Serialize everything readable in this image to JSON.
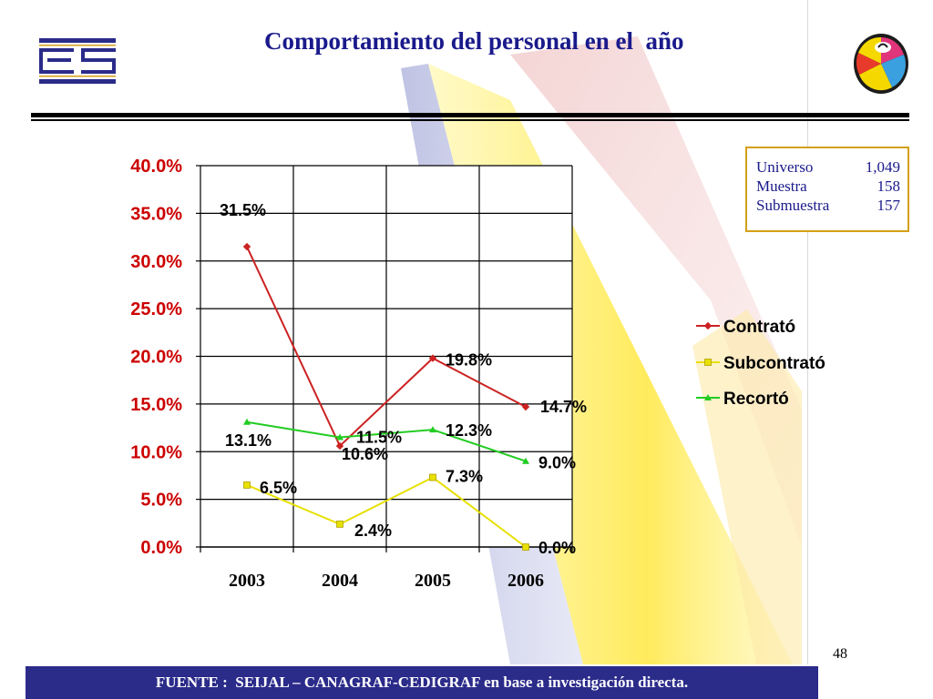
{
  "slide": {
    "title": "Comportamiento del personal en el  año",
    "page_number": "48",
    "footer": "FUENTE :  SEIJAL – CANAGRAF-CEDIGRAF en base a investigación directa."
  },
  "info_box": {
    "rows": [
      {
        "label": "Universo",
        "value": "1,049"
      },
      {
        "label": "Muestra",
        "value": "158"
      },
      {
        "label": "Submuestra",
        "value": "157"
      }
    ]
  },
  "colors": {
    "title": "#1a1a8c",
    "footer_bg": "#2b2b8a",
    "box_border": "#d4a017",
    "y_tick_text": "#cc0000"
  },
  "chart_data": {
    "type": "line",
    "title": "",
    "xlabel": "",
    "ylabel": "",
    "categories": [
      "2003",
      "2004",
      "2005",
      "2006"
    ],
    "ylim": [
      0,
      40
    ],
    "y_ticks": [
      0,
      5,
      10,
      15,
      20,
      25,
      30,
      35,
      40
    ],
    "y_tick_labels": [
      "0.0%",
      "5.0%",
      "10.0%",
      "15.0%",
      "20.0%",
      "25.0%",
      "30.0%",
      "35.0%",
      "40.0%"
    ],
    "grid": true,
    "legend_position": "right",
    "series": [
      {
        "name": "Contrató",
        "color": "#cc2222",
        "marker": "diamond",
        "values": [
          31.5,
          10.6,
          19.8,
          14.7
        ],
        "labels": [
          "31.5%",
          "10.6%",
          "19.8%",
          "14.7%"
        ]
      },
      {
        "name": "Subcontrató",
        "color": "#e8e000",
        "marker": "square",
        "values": [
          6.5,
          2.4,
          7.3,
          0.0
        ],
        "labels": [
          "6.5%",
          "2.4%",
          "7.3%",
          "0.0%"
        ]
      },
      {
        "name": "Recortó",
        "color": "#22cc22",
        "marker": "triangle",
        "values": [
          13.1,
          11.5,
          12.3,
          9.0
        ],
        "labels": [
          "13.1%",
          "11.5%",
          "12.3%",
          "9.0%"
        ]
      }
    ]
  }
}
